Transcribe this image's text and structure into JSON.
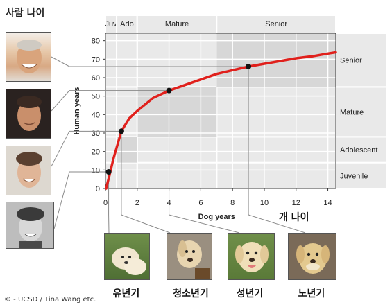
{
  "page": {
    "title_ko": "사람 나이",
    "x_title_ko": "개 나이",
    "credit": "© - UCSD / Tina Wang etc."
  },
  "dog_labels": [
    "유년기",
    "청소년기",
    "성년기",
    "노년기"
  ],
  "colors": {
    "curve": "#e0201c",
    "band_light": "#e9e9e9",
    "band_dark": "#d7d7d7",
    "band_white": "#ffffff",
    "point": "#111111",
    "leader": "#8a8a8a"
  },
  "icons": {
    "human_photos": [
      "human-adult-face-icon",
      "human-young-adult-face-icon",
      "human-teen-face-icon",
      "human-child-face-icon"
    ],
    "dog_photos": [
      "puppy-icon",
      "young-dog-icon",
      "adult-dog-icon",
      "senior-dog-icon"
    ]
  },
  "chart_data": {
    "type": "line",
    "xlabel": "Dog years",
    "ylabel": "Human years",
    "xlim": [
      0,
      14.5
    ],
    "ylim": [
      0,
      84
    ],
    "x_ticks": [
      0,
      2,
      4,
      6,
      8,
      10,
      12,
      14
    ],
    "y_ticks": [
      0,
      10,
      20,
      30,
      40,
      50,
      60,
      70,
      80
    ],
    "grid": true,
    "series": [
      {
        "x": [
          0.05,
          0.1,
          0.25,
          0.5,
          1,
          1.5,
          2,
          3,
          4,
          5,
          6,
          7,
          8,
          9,
          10,
          11,
          12,
          13,
          14,
          14.5
        ],
        "y": [
          0,
          2,
          7,
          16,
          31,
          38,
          42,
          49,
          53,
          56,
          59,
          62,
          64,
          66,
          67.5,
          69,
          70.5,
          71.5,
          73,
          73.7
        ]
      }
    ],
    "highlight_points": [
      {
        "x": 0.2,
        "y": 9
      },
      {
        "x": 1,
        "y": 31
      },
      {
        "x": 4,
        "y": 53
      },
      {
        "x": 9,
        "y": 66
      }
    ],
    "dog_stages": [
      {
        "label": "Juv",
        "x_range": [
          0,
          0.7
        ]
      },
      {
        "label": "Ado",
        "x_range": [
          0.7,
          2
        ]
      },
      {
        "label": "Mature",
        "x_range": [
          2,
          7
        ]
      },
      {
        "label": "Senior",
        "x_range": [
          7,
          14.5
        ]
      }
    ],
    "human_stages": [
      {
        "label": "Juvenile",
        "y_range": [
          0,
          14
        ]
      },
      {
        "label": "Adolescent",
        "y_range": [
          14,
          28
        ]
      },
      {
        "label": "Mature",
        "y_range": [
          28,
          55
        ]
      },
      {
        "label": "Senior",
        "y_range": [
          55,
          84
        ]
      }
    ],
    "shaded_boxes": [
      {
        "x_range": [
          0.7,
          2
        ],
        "y_range": [
          14,
          28
        ]
      },
      {
        "x_range": [
          2,
          7
        ],
        "y_range": [
          28,
          55
        ]
      },
      {
        "x_range": [
          7,
          14.5
        ],
        "y_range": [
          55,
          84
        ]
      }
    ]
  }
}
